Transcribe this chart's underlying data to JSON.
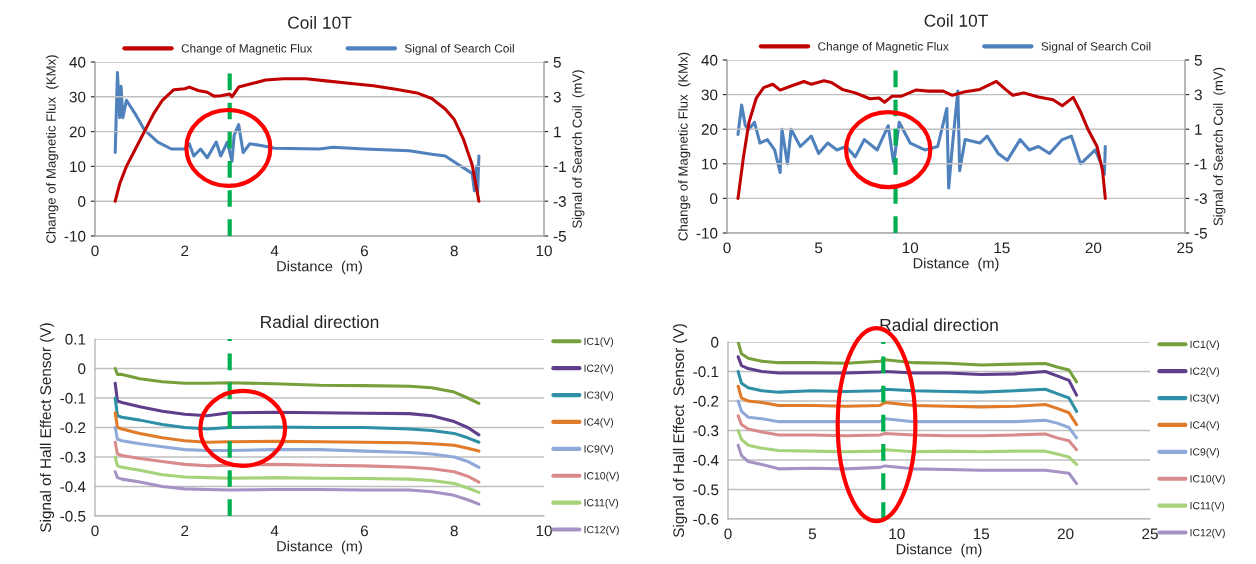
{
  "chart_data": [
    {
      "type": "line",
      "title": "Coil 10T",
      "xlabel": "Distance  (m)",
      "ylabel": "Change of Magnetic Flux  (KMx)",
      "y2label": "Signal of Search Coil  (mV)",
      "xlim": [
        0,
        10
      ],
      "xticks": [
        0,
        2,
        4,
        6,
        8,
        10
      ],
      "ylim": [
        -10,
        40
      ],
      "yticks": [
        -10,
        0,
        10,
        20,
        30,
        40
      ],
      "y2lim": [
        -5,
        5
      ],
      "y2ticks": [
        -5,
        -3,
        -1,
        1,
        3,
        5
      ],
      "grid": "y",
      "legend": "top",
      "ref_lines": [
        {
          "axis": "x",
          "value": 3.0,
          "color": "#00b050",
          "line_style": "dashed"
        }
      ],
      "series": [
        {
          "name": "Change of Magnetic Flux",
          "color": "#c00000",
          "x": [
            0.45,
            0.55,
            0.7,
            0.9,
            1.1,
            1.3,
            1.5,
            1.75,
            2.0,
            2.1,
            2.3,
            2.5,
            2.65,
            2.8,
            3.0,
            3.05,
            3.2,
            3.5,
            3.8,
            4.2,
            4.7,
            5.2,
            5.7,
            6.2,
            6.7,
            7.2,
            7.5,
            7.8,
            8.0,
            8.2,
            8.4,
            8.55
          ],
          "values": [
            0,
            5,
            10,
            15,
            20,
            25,
            29,
            32,
            32.3,
            32.8,
            31.8,
            31.3,
            30.2,
            30.3,
            30.8,
            30,
            32.8,
            33.8,
            34.8,
            35.2,
            35.2,
            34.5,
            33.8,
            33.2,
            32.2,
            31,
            29.5,
            26.5,
            23.5,
            18,
            10.5,
            0
          ]
        },
        {
          "name": "Signal of Search Coil",
          "color": "#4f81bd",
          "axis": "y2",
          "x": [
            0.45,
            0.5,
            0.55,
            0.58,
            0.62,
            0.7,
            0.9,
            1.1,
            1.4,
            1.7,
            2.0,
            2.1,
            2.2,
            2.35,
            2.5,
            2.7,
            2.8,
            2.95,
            3.05,
            3.1,
            3.2,
            3.3,
            3.45,
            3.7,
            4.0,
            5.0,
            5.3,
            6.0,
            7.0,
            7.5,
            7.8,
            8.1,
            8.4,
            8.45,
            8.5,
            8.52,
            8.55
          ],
          "values": [
            -0.2,
            4.4,
            1.8,
            3.6,
            1.8,
            2.8,
            2.0,
            1.1,
            0.4,
            0,
            0,
            0.3,
            -0.4,
            0,
            -0.5,
            0.4,
            -0.4,
            0.4,
            -0.7,
            0.8,
            1.4,
            -0.2,
            0.3,
            0.2,
            0.04,
            0,
            0.1,
            0,
            -0.1,
            -0.3,
            -0.4,
            -0.9,
            -1.4,
            -2.4,
            -1,
            -2.6,
            -0.4
          ]
        }
      ]
    },
    {
      "type": "line",
      "title": "Coil 10T",
      "xlabel": "Distance  (m)",
      "ylabel": "Change of Magnetic Flux  (KMx)",
      "y2label": "Signal of Search Coil  (mV)",
      "xlim": [
        0,
        25
      ],
      "xticks": [
        0,
        5,
        10,
        15,
        20,
        25
      ],
      "ylim": [
        -10,
        40
      ],
      "yticks": [
        -10,
        0,
        10,
        20,
        30,
        40
      ],
      "y2lim": [
        -5,
        5
      ],
      "y2ticks": [
        -5,
        -3,
        -1,
        1,
        3,
        5
      ],
      "grid": "y",
      "legend": "top",
      "ref_lines": [
        {
          "axis": "x",
          "value": 9.2,
          "color": "#00b050",
          "line_style": "dashed"
        }
      ],
      "series": [
        {
          "name": "Change of Magnetic Flux",
          "color": "#c00000",
          "x": [
            0.6,
            0.9,
            1.2,
            1.6,
            2.0,
            2.5,
            2.9,
            3.5,
            4.2,
            4.6,
            5.3,
            5.7,
            6.3,
            7.0,
            7.8,
            8.3,
            8.6,
            9.0,
            9.5,
            10.3,
            11,
            11.8,
            12.3,
            13,
            13.8,
            14.7,
            15.2,
            15.6,
            16.2,
            17,
            17.8,
            18.3,
            18.9,
            19.3,
            19.7,
            20.2,
            20.5,
            20.65
          ],
          "values": [
            0,
            12,
            22,
            29,
            32,
            33,
            31.3,
            32.5,
            33.8,
            33,
            34,
            33.5,
            31.5,
            30.5,
            28.8,
            29,
            27.8,
            29.5,
            29.5,
            31.3,
            31,
            31,
            29.8,
            30.8,
            31.5,
            33.8,
            31.5,
            29.8,
            30.5,
            29.3,
            28.5,
            26.8,
            29.2,
            25,
            20,
            15,
            8,
            0
          ]
        },
        {
          "name": "Signal of Search Coil",
          "color": "#4f81bd",
          "axis": "y2",
          "x": [
            0.6,
            0.8,
            1.0,
            1.2,
            1.5,
            1.8,
            2.2,
            2.6,
            2.9,
            3.0,
            3.3,
            3.5,
            4,
            4.6,
            5.0,
            5.5,
            6,
            6.5,
            7,
            7.5,
            8.2,
            8.8,
            9.1,
            9.4,
            10,
            10.8,
            11.5,
            12.0,
            12.1,
            12.3,
            12.6,
            12.7,
            13,
            13.8,
            14.2,
            14.8,
            15.3,
            16,
            16.5,
            17,
            17.6,
            18.3,
            18.8,
            19.3,
            19.7,
            20.1,
            20.5,
            20.6,
            20.65
          ],
          "values": [
            0.7,
            2.4,
            1.2,
            1,
            1.4,
            0.2,
            0.4,
            -0.2,
            -1.5,
            1,
            -1,
            1,
            0,
            0.6,
            -0.4,
            0.2,
            -0.2,
            0,
            -0.6,
            0.4,
            -0.2,
            1.2,
            -1,
            1.4,
            0.2,
            -0.2,
            0,
            2.2,
            -2.4,
            0,
            3.2,
            -1.4,
            0.4,
            0.2,
            0.6,
            -0.4,
            -0.8,
            0.4,
            -0.2,
            0,
            -0.4,
            0.4,
            0.6,
            -1,
            -0.6,
            -0.2,
            -1.2,
            -1.6,
            0
          ]
        }
      ]
    },
    {
      "type": "line",
      "title": "Radial direction",
      "xlabel": "Distance  (m)",
      "ylabel": "Signal of Hall Effect Sensor (V)",
      "xlim": [
        0,
        10
      ],
      "xticks": [
        0,
        2,
        4,
        6,
        8,
        10
      ],
      "ylim": [
        -0.5,
        0.1
      ],
      "yticks": [
        -0.5,
        -0.4,
        -0.3,
        -0.2,
        -0.1,
        0,
        0.1
      ],
      "grid": "y",
      "legend": "right",
      "ref_lines": [
        {
          "axis": "x",
          "value": 3.0,
          "color": "#00b050",
          "line_style": "dashed"
        }
      ],
      "x": [
        0.45,
        0.5,
        0.6,
        1,
        1.5,
        2,
        2.5,
        3,
        4,
        5,
        6,
        7,
        7.5,
        8,
        8.3,
        8.55
      ],
      "series": [
        {
          "name": "IC1(V)",
          "color": "#77a03c",
          "values": [
            0,
            -0.02,
            -0.02,
            -0.035,
            -0.045,
            -0.05,
            -0.05,
            -0.048,
            -0.052,
            -0.057,
            -0.058,
            -0.06,
            -0.065,
            -0.08,
            -0.1,
            -0.118
          ]
        },
        {
          "name": "IC2(V)",
          "color": "#5f3f8c",
          "values": [
            -0.05,
            -0.11,
            -0.115,
            -0.13,
            -0.145,
            -0.155,
            -0.16,
            -0.15,
            -0.148,
            -0.15,
            -0.152,
            -0.153,
            -0.16,
            -0.18,
            -0.2,
            -0.225
          ]
        },
        {
          "name": "IC3(V)",
          "color": "#2e8fa6",
          "values": [
            -0.1,
            -0.16,
            -0.165,
            -0.175,
            -0.19,
            -0.2,
            -0.205,
            -0.2,
            -0.198,
            -0.2,
            -0.2,
            -0.205,
            -0.21,
            -0.22,
            -0.235,
            -0.25
          ]
        },
        {
          "name": "IC4(V)",
          "color": "#e07b2a",
          "values": [
            -0.15,
            -0.2,
            -0.205,
            -0.22,
            -0.235,
            -0.245,
            -0.25,
            -0.248,
            -0.247,
            -0.248,
            -0.25,
            -0.252,
            -0.255,
            -0.26,
            -0.27,
            -0.28
          ]
        },
        {
          "name": "IC9(V)",
          "color": "#8fa9d9",
          "values": [
            -0.2,
            -0.24,
            -0.245,
            -0.255,
            -0.265,
            -0.275,
            -0.278,
            -0.278,
            -0.275,
            -0.275,
            -0.28,
            -0.285,
            -0.29,
            -0.3,
            -0.315,
            -0.335
          ]
        },
        {
          "name": "IC10(V)",
          "color": "#d98a8a",
          "values": [
            -0.25,
            -0.29,
            -0.295,
            -0.305,
            -0.315,
            -0.325,
            -0.33,
            -0.328,
            -0.325,
            -0.328,
            -0.33,
            -0.335,
            -0.34,
            -0.35,
            -0.365,
            -0.385
          ]
        },
        {
          "name": "IC11(V)",
          "color": "#a6d27a",
          "values": [
            -0.3,
            -0.33,
            -0.335,
            -0.345,
            -0.36,
            -0.368,
            -0.37,
            -0.372,
            -0.37,
            -0.372,
            -0.373,
            -0.375,
            -0.38,
            -0.39,
            -0.405,
            -0.42
          ]
        },
        {
          "name": "IC12(V)",
          "color": "#a692c4",
          "values": [
            -0.35,
            -0.37,
            -0.375,
            -0.385,
            -0.4,
            -0.408,
            -0.41,
            -0.412,
            -0.41,
            -0.41,
            -0.412,
            -0.412,
            -0.418,
            -0.43,
            -0.445,
            -0.46
          ]
        }
      ]
    },
    {
      "type": "line",
      "title": "Radial direction",
      "xlabel": "Distance  (m)",
      "ylabel": "Signal of Hall Effect  Sensor (V)",
      "xlim": [
        0,
        25
      ],
      "xticks": [
        0,
        5,
        10,
        15,
        20,
        25
      ],
      "ylim": [
        -0.6,
        0
      ],
      "yticks": [
        -0.6,
        -0.5,
        -0.4,
        -0.3,
        -0.2,
        -0.1,
        0
      ],
      "grid": "y",
      "legend": "right",
      "ref_lines": [
        {
          "axis": "x",
          "value": 9.2,
          "color": "#00b050",
          "line_style": "dashed"
        }
      ],
      "x": [
        0.6,
        0.8,
        1.2,
        2,
        3,
        5,
        7,
        9,
        9.3,
        11,
        13,
        15,
        17,
        18.8,
        19.5,
        20.2,
        20.65
      ],
      "series": [
        {
          "name": "IC1(V)",
          "color": "#77a03c",
          "values": [
            0,
            -0.04,
            -0.055,
            -0.065,
            -0.07,
            -0.07,
            -0.072,
            -0.065,
            -0.06,
            -0.07,
            -0.072,
            -0.078,
            -0.075,
            -0.073,
            -0.085,
            -0.095,
            -0.135
          ]
        },
        {
          "name": "IC2(V)",
          "color": "#5f3f8c",
          "values": [
            -0.05,
            -0.08,
            -0.09,
            -0.1,
            -0.105,
            -0.105,
            -0.105,
            -0.102,
            -0.1,
            -0.105,
            -0.105,
            -0.11,
            -0.108,
            -0.1,
            -0.115,
            -0.13,
            -0.18
          ]
        },
        {
          "name": "IC3(V)",
          "color": "#2e8fa6",
          "values": [
            -0.1,
            -0.14,
            -0.155,
            -0.165,
            -0.17,
            -0.165,
            -0.168,
            -0.165,
            -0.16,
            -0.165,
            -0.168,
            -0.17,
            -0.165,
            -0.16,
            -0.175,
            -0.19,
            -0.235
          ]
        },
        {
          "name": "IC4(V)",
          "color": "#e07b2a",
          "values": [
            -0.15,
            -0.19,
            -0.2,
            -0.205,
            -0.215,
            -0.215,
            -0.218,
            -0.215,
            -0.205,
            -0.215,
            -0.218,
            -0.22,
            -0.218,
            -0.212,
            -0.225,
            -0.24,
            -0.28
          ]
        },
        {
          "name": "IC9(V)",
          "color": "#8fa9d9",
          "values": [
            -0.2,
            -0.235,
            -0.255,
            -0.26,
            -0.27,
            -0.27,
            -0.27,
            -0.27,
            -0.26,
            -0.27,
            -0.27,
            -0.27,
            -0.27,
            -0.265,
            -0.275,
            -0.29,
            -0.325
          ]
        },
        {
          "name": "IC10(V)",
          "color": "#d98a8a",
          "values": [
            -0.25,
            -0.28,
            -0.295,
            -0.305,
            -0.315,
            -0.315,
            -0.318,
            -0.315,
            -0.31,
            -0.315,
            -0.318,
            -0.318,
            -0.315,
            -0.312,
            -0.325,
            -0.335,
            -0.365
          ]
        },
        {
          "name": "IC11(V)",
          "color": "#a6d27a",
          "values": [
            -0.3,
            -0.33,
            -0.35,
            -0.36,
            -0.368,
            -0.37,
            -0.372,
            -0.37,
            -0.365,
            -0.372,
            -0.37,
            -0.372,
            -0.37,
            -0.37,
            -0.38,
            -0.39,
            -0.415
          ]
        },
        {
          "name": "IC12(V)",
          "color": "#a692c4",
          "values": [
            -0.35,
            -0.385,
            -0.405,
            -0.415,
            -0.43,
            -0.428,
            -0.43,
            -0.425,
            -0.42,
            -0.43,
            -0.432,
            -0.435,
            -0.435,
            -0.435,
            -0.44,
            -0.445,
            -0.48
          ]
        }
      ]
    }
  ]
}
